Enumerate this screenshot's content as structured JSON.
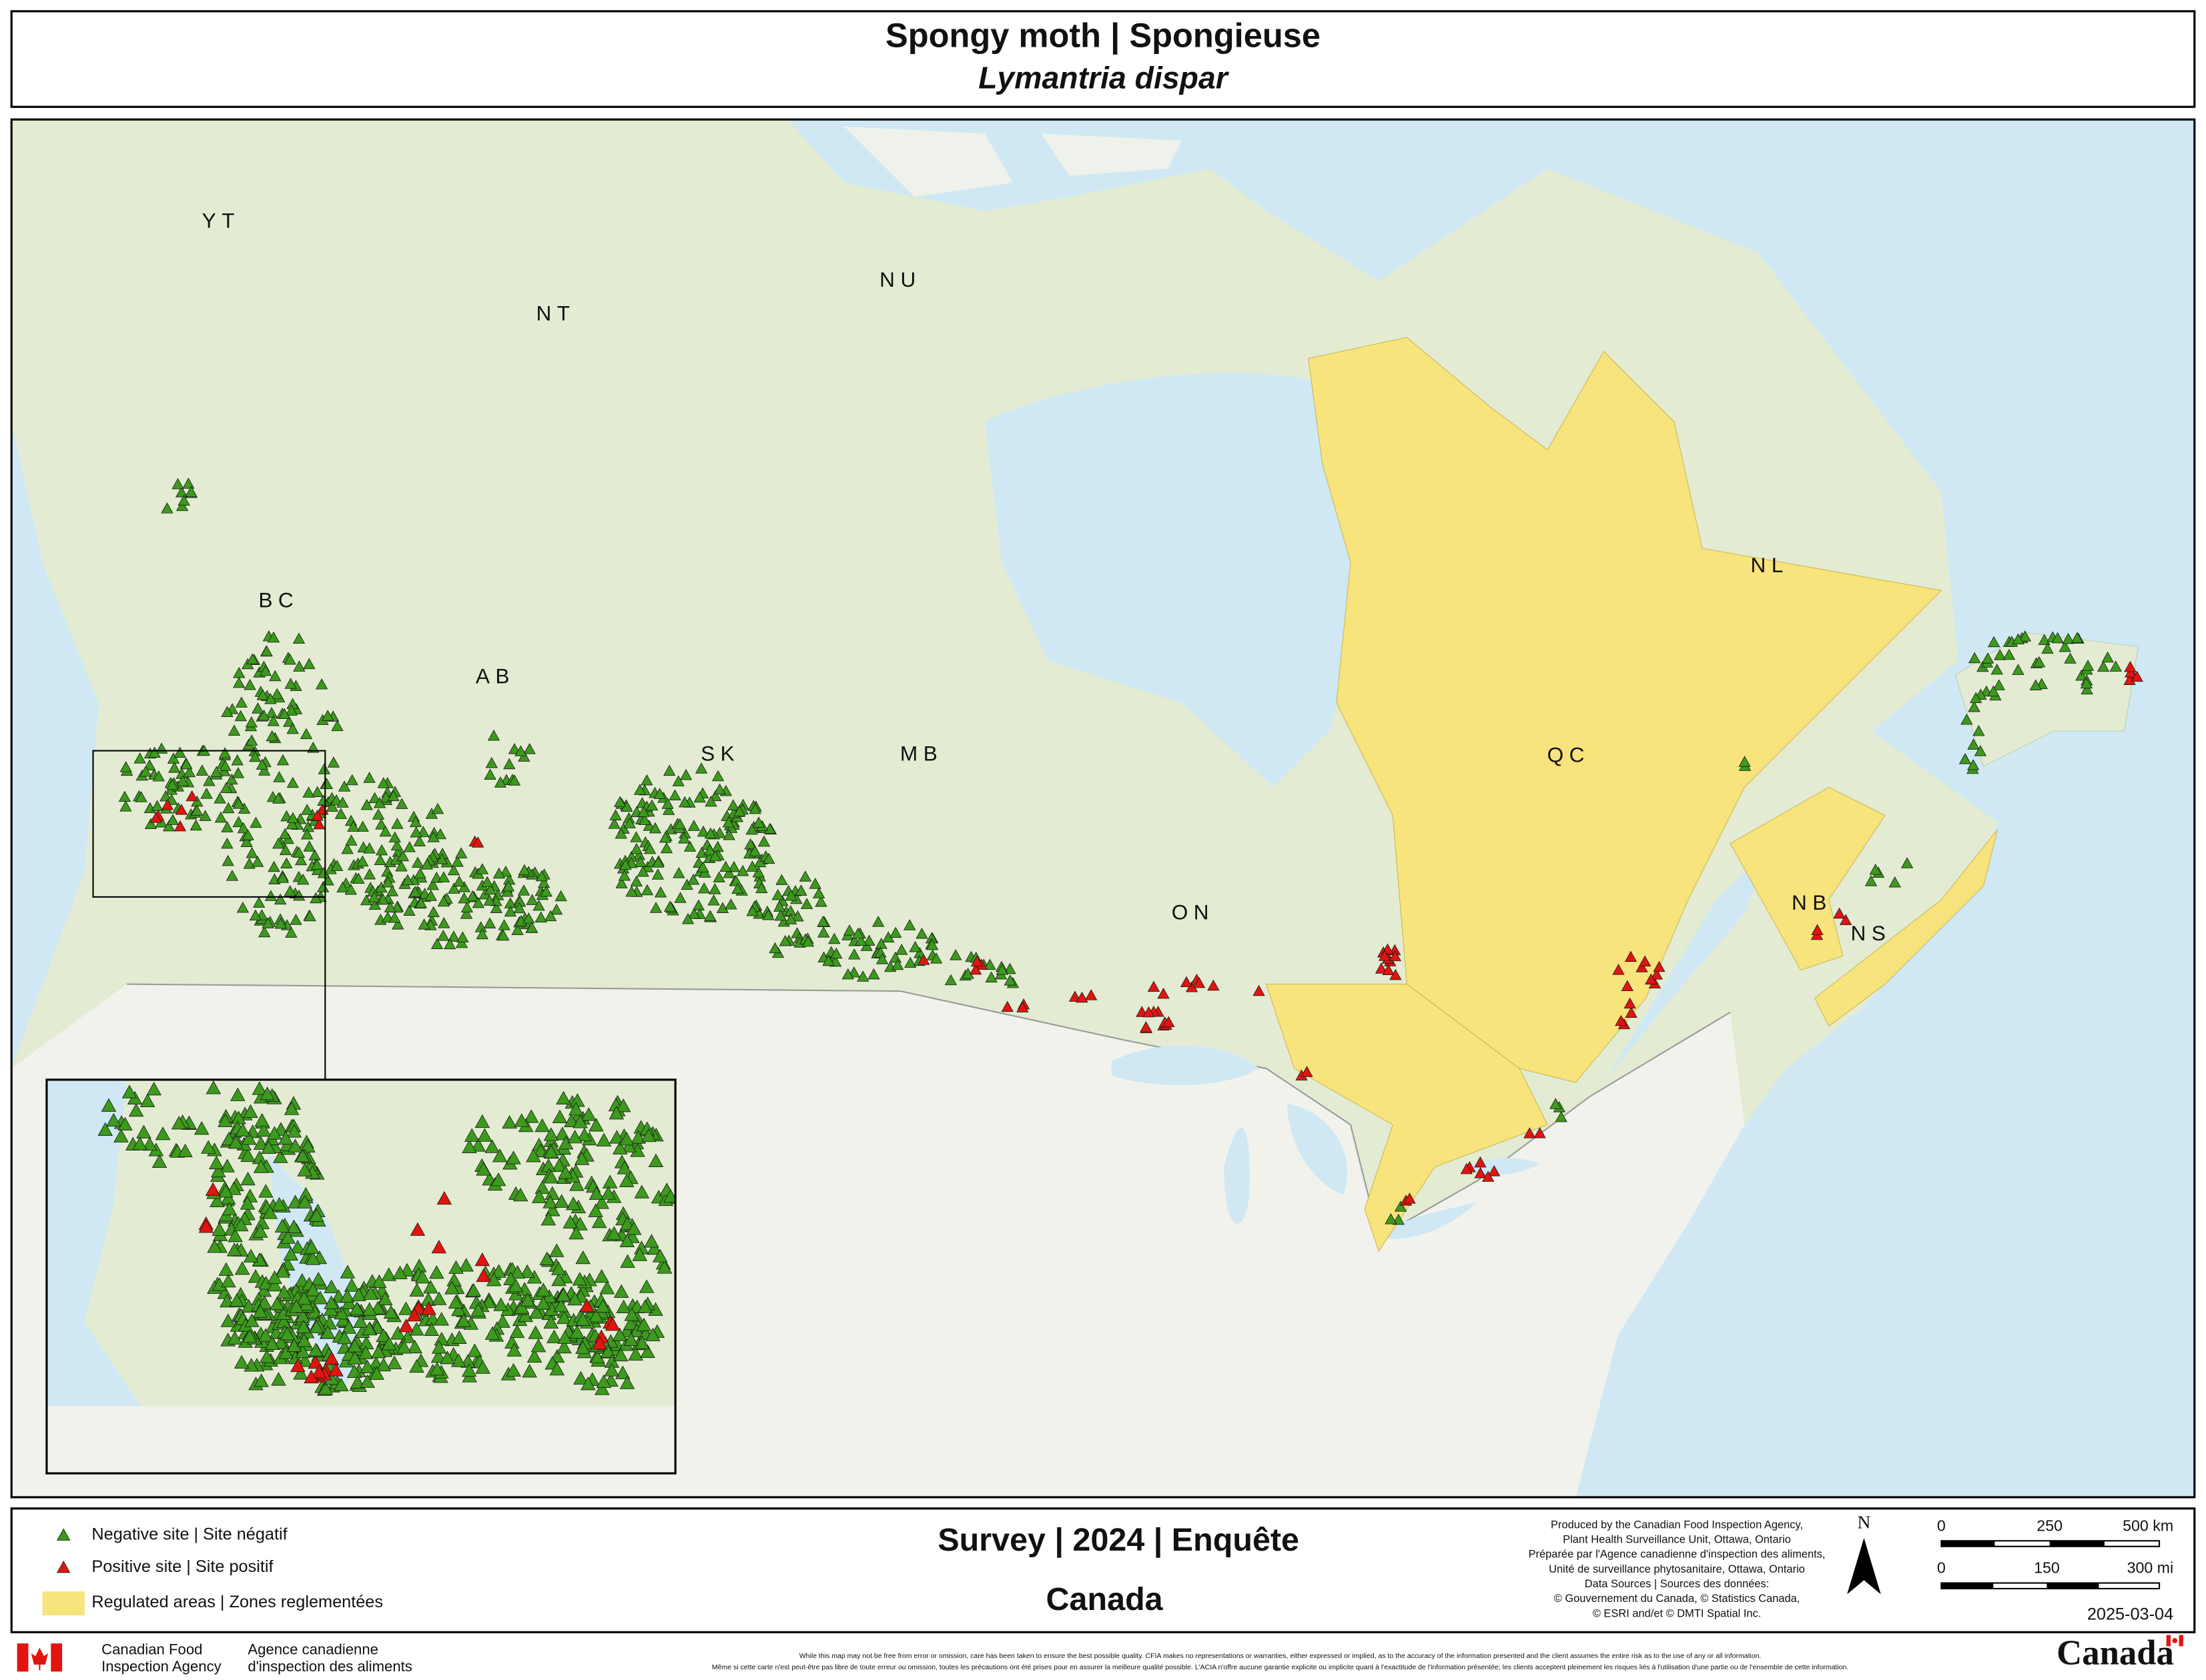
{
  "header": {
    "title": "Spongy moth | Spongieuse",
    "subtitle": "Lymantria dispar"
  },
  "map": {
    "labels": [
      "YT",
      "NT",
      "NU",
      "BC",
      "AB",
      "SK",
      "MB",
      "ON",
      "QC",
      "NL",
      "NB",
      "NS"
    ]
  },
  "legend": {
    "items": [
      {
        "label": "Negative site | Site négatif",
        "color": "#3c9a1c"
      },
      {
        "label": "Positive site | Site positif",
        "color": "#e3140f"
      },
      {
        "label": "Regulated areas | Zones reglementées",
        "color": "#f8e47c"
      }
    ]
  },
  "survey": {
    "title": "Survey | 2024  | Enquête",
    "region": "Canada"
  },
  "credits": [
    "Produced by the Canadian Food Inspection Agency,",
    "Plant Health Surveillance Unit, Ottawa, Ontario",
    "Préparée par l'Agence canadienne d'inspection des aliments,",
    "Unité de surveillance phytosanitaire, Ottawa, Ontario",
    "Data Sources | Sources des données:",
    "© Gouvernement du Canada, © Statistics Canada,",
    "© ESRI and/et © DMTI Spatial Inc."
  ],
  "north": "N",
  "scale": {
    "km": [
      "0",
      "250",
      "500 km"
    ],
    "mi": [
      "0",
      "150",
      "300 mi"
    ]
  },
  "date": "2025-03-04",
  "agency": {
    "en": [
      "Canadian Food",
      "Inspection Agency"
    ],
    "fr": [
      "Agence canadienne",
      "d'inspection des aliments"
    ]
  },
  "disclaimer": [
    "While this map may not be free from error or omission, care has been taken to ensure the best possible quality. CFIA makes no representations or warranties, either expressed or implied, as to the accuracy of the information presented and the client assumes the entire risk as to the use of any or all information.",
    "Même si cette carte n'est peut-être pas libre de toute erreur ou omission, toutes les précautions ont été prises pour en assurer la meilleure qualité possible. L'ACIA n'offre aucune garantie explicite ou implicite quant à l'exactitude de l'information présentée; les clients acceptent pleinement les risques liés à l'utilisation d'une partie ou de l'ensemble de cette information."
  ],
  "wordmark": "Canada"
}
